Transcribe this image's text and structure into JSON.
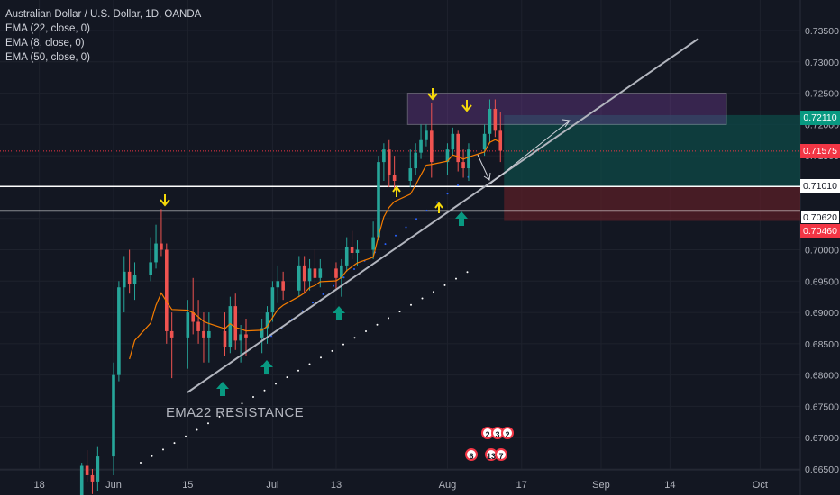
{
  "legend": {
    "title": "Australian Dollar / U.S. Dollar, 1D, OANDA",
    "ema1": "EMA (22, close, 0)",
    "ema2": "EMA (8, close, 0)",
    "ema3": "EMA (50, close, 0)"
  },
  "annotation_text": "EMA22 RESISTANCE",
  "price_tags": {
    "last_price": "0.72110",
    "red_line": "0.71575",
    "level_upper": "0.71010",
    "level_lower": "0.70620",
    "stop": "0.70460"
  },
  "event_badges": [
    "2",
    "3",
    "2",
    "6",
    "13",
    "7"
  ],
  "colors": {
    "background": "#131722",
    "up_candle": "#26a69a",
    "down_candle": "#ef5350",
    "ema_line": "#f57c00",
    "trendline": "#b2b5be",
    "arrow_yellow": "#f5d90a",
    "arrow_teal": "#089981",
    "purple_zone": "#7b3fa0",
    "target_zone": "#0d4a47",
    "stop_zone": "#5a1f27"
  },
  "chart_data": {
    "type": "candlestick",
    "title": "Australian Dollar / U.S. Dollar, 1D, OANDA",
    "ylim": [
      0.6645,
      0.7365
    ],
    "y_ticks": [
      "0.73500",
      "0.73000",
      "0.72500",
      "0.72000",
      "0.71500",
      "0.71000",
      "0.70500",
      "0.70000",
      "0.69500",
      "0.69000",
      "0.68500",
      "0.68000",
      "0.67500",
      "0.67000",
      "0.66500"
    ],
    "y_tick_values": [
      0.735,
      0.73,
      0.725,
      0.72,
      0.715,
      0.71,
      0.705,
      0.7,
      0.695,
      0.69,
      0.685,
      0.68,
      0.675,
      0.67,
      0.665
    ],
    "x_tick_labels": [
      "18",
      "Jun",
      "15",
      "Jul",
      "13",
      "Aug",
      "17",
      "Sep",
      "14",
      "Oct"
    ],
    "x_tick_dates": [
      "2020-05-18",
      "2020-06-01",
      "2020-06-15",
      "2020-07-01",
      "2020-07-13",
      "2020-08-03",
      "2020-08-17",
      "2020-09-01",
      "2020-09-14",
      "2020-10-01"
    ],
    "candles": [
      {
        "date": "2020-05-26",
        "o": 0.66,
        "h": 0.666,
        "l": 0.659,
        "c": 0.6655
      },
      {
        "date": "2020-05-27",
        "o": 0.6655,
        "h": 0.668,
        "l": 0.663,
        "c": 0.664
      },
      {
        "date": "2020-05-28",
        "o": 0.664,
        "h": 0.665,
        "l": 0.661,
        "c": 0.663
      },
      {
        "date": "2020-05-29",
        "o": 0.663,
        "h": 0.6685,
        "l": 0.6615,
        "c": 0.667
      },
      {
        "date": "2020-06-01",
        "o": 0.667,
        "h": 0.682,
        "l": 0.664,
        "c": 0.68
      },
      {
        "date": "2020-06-02",
        "o": 0.68,
        "h": 0.695,
        "l": 0.679,
        "c": 0.694
      },
      {
        "date": "2020-06-03",
        "o": 0.694,
        "h": 0.699,
        "l": 0.69,
        "c": 0.6965
      },
      {
        "date": "2020-06-04",
        "o": 0.6965,
        "h": 0.7,
        "l": 0.693,
        "c": 0.6945
      },
      {
        "date": "2020-06-05",
        "o": 0.6945,
        "h": 0.698,
        "l": 0.692,
        "c": 0.696
      },
      {
        "date": "2020-06-08",
        "o": 0.696,
        "h": 0.702,
        "l": 0.695,
        "c": 0.698
      },
      {
        "date": "2020-06-09",
        "o": 0.698,
        "h": 0.704,
        "l": 0.697,
        "c": 0.701
      },
      {
        "date": "2020-06-10",
        "o": 0.701,
        "h": 0.7065,
        "l": 0.699,
        "c": 0.7
      },
      {
        "date": "2020-06-11",
        "o": 0.7,
        "h": 0.701,
        "l": 0.685,
        "c": 0.687
      },
      {
        "date": "2020-06-12",
        "o": 0.687,
        "h": 0.69,
        "l": 0.6795,
        "c": 0.686
      },
      {
        "date": "2020-06-15",
        "o": 0.686,
        "h": 0.692,
        "l": 0.681,
        "c": 0.69
      },
      {
        "date": "2020-06-16",
        "o": 0.69,
        "h": 0.6955,
        "l": 0.6865,
        "c": 0.6885
      },
      {
        "date": "2020-06-17",
        "o": 0.6885,
        "h": 0.692,
        "l": 0.685,
        "c": 0.687
      },
      {
        "date": "2020-06-18",
        "o": 0.687,
        "h": 0.69,
        "l": 0.682,
        "c": 0.686
      },
      {
        "date": "2020-06-19",
        "o": 0.686,
        "h": 0.69,
        "l": 0.682,
        "c": 0.687
      },
      {
        "date": "2020-06-22",
        "o": 0.687,
        "h": 0.69,
        "l": 0.683,
        "c": 0.6845
      },
      {
        "date": "2020-06-23",
        "o": 0.6845,
        "h": 0.6925,
        "l": 0.6835,
        "c": 0.691
      },
      {
        "date": "2020-06-24",
        "o": 0.691,
        "h": 0.693,
        "l": 0.684,
        "c": 0.6855
      },
      {
        "date": "2020-06-25",
        "o": 0.6855,
        "h": 0.688,
        "l": 0.682,
        "c": 0.6865
      },
      {
        "date": "2020-06-26",
        "o": 0.6865,
        "h": 0.689,
        "l": 0.683,
        "c": 0.686
      },
      {
        "date": "2020-06-29",
        "o": 0.686,
        "h": 0.689,
        "l": 0.6835,
        "c": 0.6875
      },
      {
        "date": "2020-06-30",
        "o": 0.6875,
        "h": 0.691,
        "l": 0.685,
        "c": 0.69
      },
      {
        "date": "2020-07-01",
        "o": 0.69,
        "h": 0.695,
        "l": 0.6885,
        "c": 0.694
      },
      {
        "date": "2020-07-02",
        "o": 0.694,
        "h": 0.6975,
        "l": 0.6915,
        "c": 0.695
      },
      {
        "date": "2020-07-03",
        "o": 0.695,
        "h": 0.6965,
        "l": 0.692,
        "c": 0.6935
      },
      {
        "date": "2020-07-06",
        "o": 0.6935,
        "h": 0.699,
        "l": 0.6925,
        "c": 0.6975
      },
      {
        "date": "2020-07-07",
        "o": 0.6975,
        "h": 0.699,
        "l": 0.693,
        "c": 0.695
      },
      {
        "date": "2020-07-08",
        "o": 0.695,
        "h": 0.6985,
        "l": 0.6935,
        "c": 0.697
      },
      {
        "date": "2020-07-09",
        "o": 0.697,
        "h": 0.7,
        "l": 0.6945,
        "c": 0.6955
      },
      {
        "date": "2020-07-10",
        "o": 0.6955,
        "h": 0.6985,
        "l": 0.694,
        "c": 0.697
      },
      {
        "date": "2020-07-13",
        "o": 0.697,
        "h": 0.698,
        "l": 0.6935,
        "c": 0.6955
      },
      {
        "date": "2020-07-14",
        "o": 0.6955,
        "h": 0.6985,
        "l": 0.6925,
        "c": 0.6975
      },
      {
        "date": "2020-07-15",
        "o": 0.6975,
        "h": 0.702,
        "l": 0.6965,
        "c": 0.7005
      },
      {
        "date": "2020-07-16",
        "o": 0.7005,
        "h": 0.703,
        "l": 0.6985,
        "c": 0.6995
      },
      {
        "date": "2020-07-17",
        "o": 0.6995,
        "h": 0.7015,
        "l": 0.6975,
        "c": 0.7
      },
      {
        "date": "2020-07-20",
        "o": 0.7,
        "h": 0.7045,
        "l": 0.6985,
        "c": 0.702
      },
      {
        "date": "2020-07-21",
        "o": 0.702,
        "h": 0.715,
        "l": 0.7015,
        "c": 0.714
      },
      {
        "date": "2020-07-22",
        "o": 0.714,
        "h": 0.717,
        "l": 0.711,
        "c": 0.716
      },
      {
        "date": "2020-07-23",
        "o": 0.716,
        "h": 0.7175,
        "l": 0.71,
        "c": 0.712
      },
      {
        "date": "2020-07-24",
        "o": 0.712,
        "h": 0.715,
        "l": 0.7095,
        "c": 0.711
      },
      {
        "date": "2020-07-27",
        "o": 0.711,
        "h": 0.716,
        "l": 0.71,
        "c": 0.713
      },
      {
        "date": "2020-07-28",
        "o": 0.713,
        "h": 0.717,
        "l": 0.712,
        "c": 0.7155
      },
      {
        "date": "2020-07-29",
        "o": 0.7155,
        "h": 0.72,
        "l": 0.7145,
        "c": 0.7175
      },
      {
        "date": "2020-07-30",
        "o": 0.7175,
        "h": 0.72,
        "l": 0.7165,
        "c": 0.719
      },
      {
        "date": "2020-07-31",
        "o": 0.719,
        "h": 0.7235,
        "l": 0.7115,
        "c": 0.714
      },
      {
        "date": "2020-08-03",
        "o": 0.714,
        "h": 0.717,
        "l": 0.712,
        "c": 0.716
      },
      {
        "date": "2020-08-04",
        "o": 0.716,
        "h": 0.7195,
        "l": 0.715,
        "c": 0.7185
      },
      {
        "date": "2020-08-05",
        "o": 0.7185,
        "h": 0.719,
        "l": 0.7125,
        "c": 0.714
      },
      {
        "date": "2020-08-06",
        "o": 0.714,
        "h": 0.716,
        "l": 0.7115,
        "c": 0.713
      },
      {
        "date": "2020-08-07",
        "o": 0.713,
        "h": 0.717,
        "l": 0.711,
        "c": 0.716
      },
      {
        "date": "2020-08-10",
        "o": 0.716,
        "h": 0.72,
        "l": 0.715,
        "c": 0.7185
      },
      {
        "date": "2020-08-11",
        "o": 0.7185,
        "h": 0.724,
        "l": 0.717,
        "c": 0.7225
      },
      {
        "date": "2020-08-12",
        "o": 0.7225,
        "h": 0.724,
        "l": 0.718,
        "c": 0.719
      },
      {
        "date": "2020-08-13",
        "o": 0.719,
        "h": 0.722,
        "l": 0.714,
        "c": 0.7158
      }
    ],
    "levels": [
      0.7101,
      0.7062
    ],
    "price_line": 0.71575
  }
}
